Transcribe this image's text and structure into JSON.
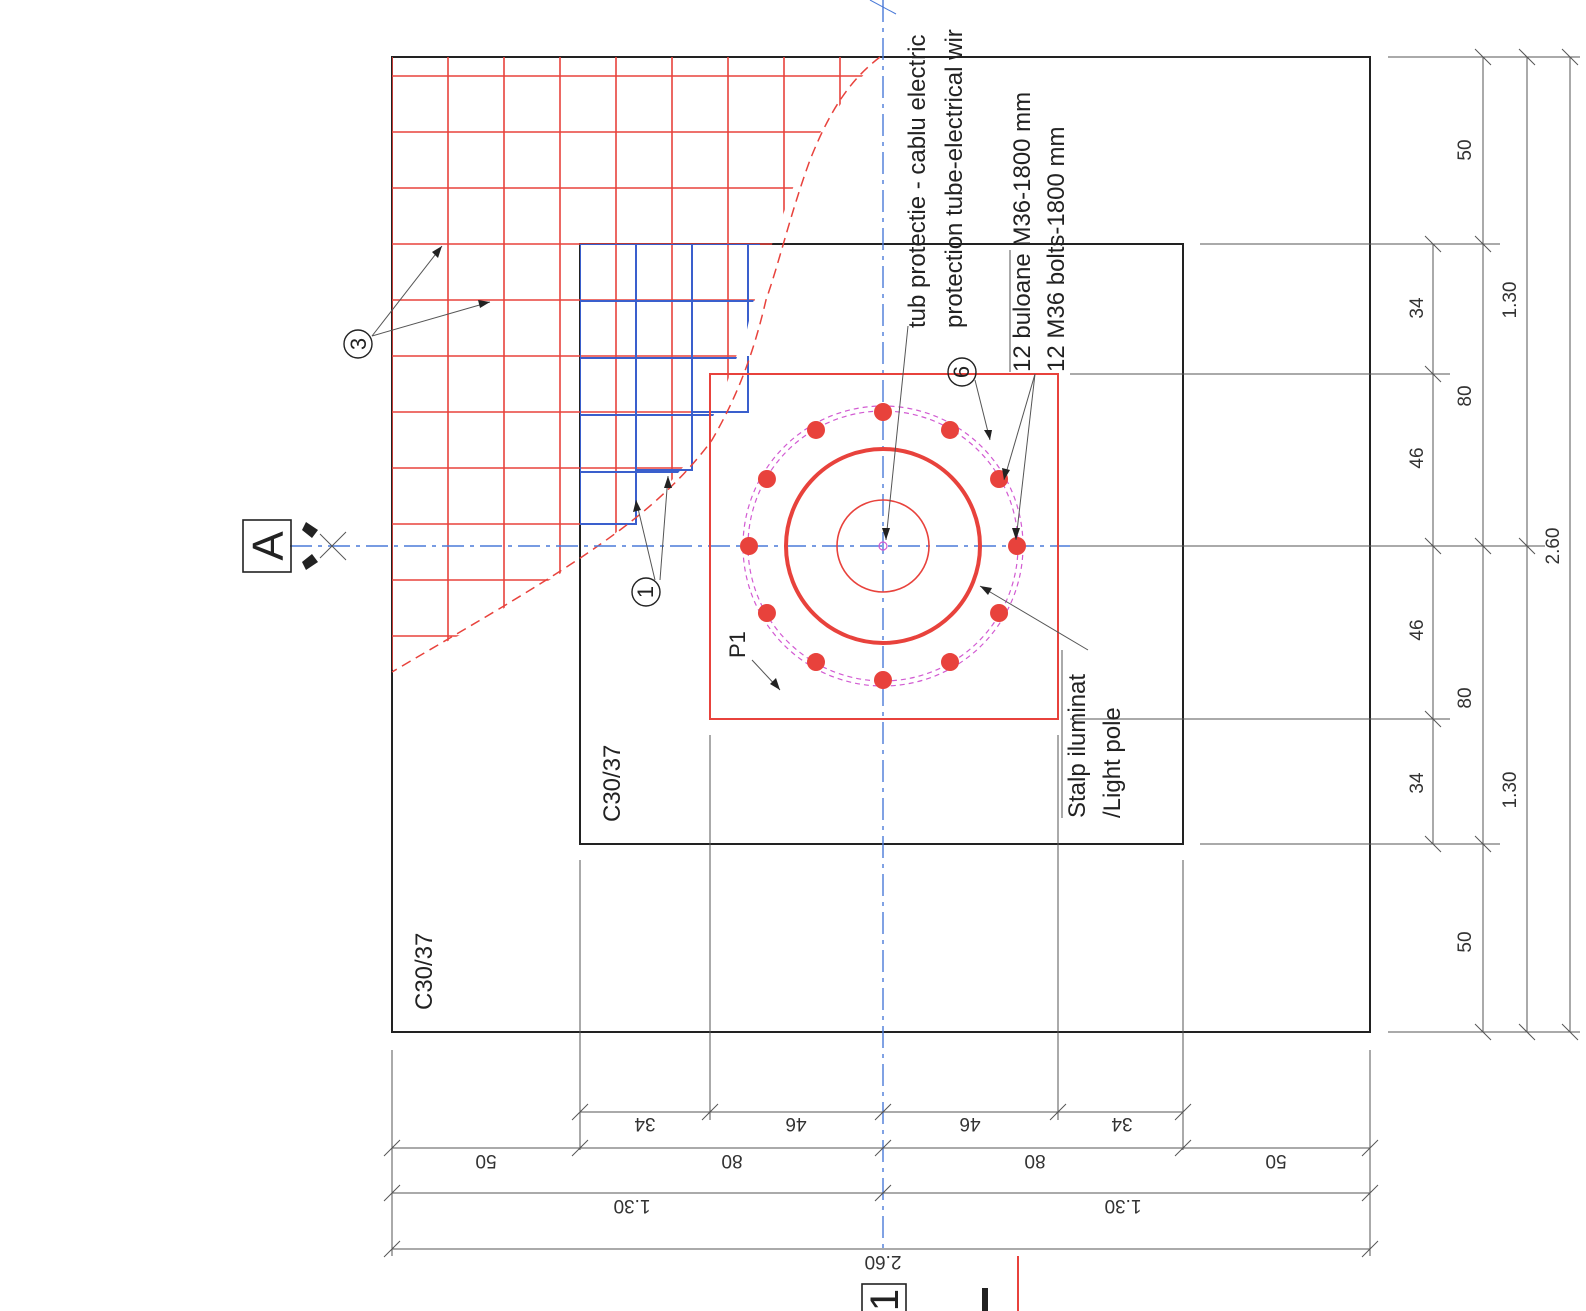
{
  "colors": {
    "rebar": "#e8423c",
    "rebar_inner": "#3a5fcd",
    "outline": "#222222",
    "axis": "#4a7ad8",
    "bolt_circle": "#d25bd2"
  },
  "concrete": {
    "outer_class": "C30/37",
    "inner_class": "C30/37"
  },
  "section_marker": {
    "top_label": "A",
    "bottom_label": "1"
  },
  "callouts": {
    "rebar_1": "1",
    "rebar_3": "3",
    "bolts_6": "6",
    "plate": "P1"
  },
  "annotations": {
    "tube_ro": "tub protectie - cablu electric",
    "tube_en": "protection tube-electrical wir",
    "bolts_ro": "12 buloane M36-1800 mm",
    "bolts_en": "12 M36 bolts-1800 mm",
    "pole_ro": "Stalp iluminat",
    "pole_en": "/Light pole"
  },
  "dimensions_right": {
    "row1": [
      "50",
      "34",
      "46",
      "46",
      "34",
      "50"
    ],
    "row2": [
      "80",
      "80"
    ],
    "row3": [
      "1.30",
      "1.30"
    ],
    "row4": "2.60"
  },
  "dimensions_bottom": {
    "row1": [
      "34",
      "46",
      "46",
      "34"
    ],
    "row2": [
      "50",
      "80",
      "80",
      "50"
    ],
    "row3": [
      "1.30",
      "1.30"
    ],
    "row4": "2.60"
  },
  "bolts": {
    "count": 12
  }
}
